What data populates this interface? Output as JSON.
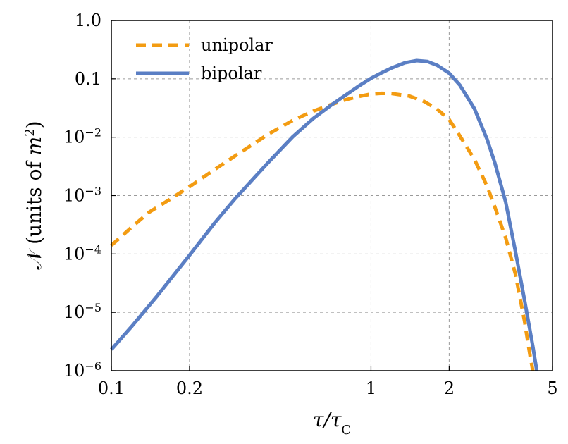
{
  "chart_data": {
    "type": "line",
    "title": "",
    "xlabel": "τ/τC",
    "xlabel_main": "τ/τ",
    "xlabel_sub": "C",
    "ylabel": "𝒩 (units of m²)",
    "ylabel_main": "𝒩 (units of ",
    "ylabel_var": "m",
    "ylabel_exp": "2",
    "ylabel_close": ")",
    "x_scale": "log",
    "y_scale": "log",
    "xlim": [
      0.1,
      5
    ],
    "ylim": [
      1e-06,
      1.0
    ],
    "grid": true,
    "legend_position": "top-left",
    "x_ticks": [
      {
        "value": 0.1,
        "label": "0.1"
      },
      {
        "value": 0.2,
        "label": "0.2"
      },
      {
        "value": 1,
        "label": "1"
      },
      {
        "value": 2,
        "label": "2"
      },
      {
        "value": 5,
        "label": "5"
      }
    ],
    "y_ticks": [
      {
        "value": 1.0,
        "base": "1.0",
        "exp": ""
      },
      {
        "value": 0.1,
        "base": "0.1",
        "exp": ""
      },
      {
        "value": 0.01,
        "base": "10",
        "exp": "−2"
      },
      {
        "value": 0.001,
        "base": "10",
        "exp": "−3"
      },
      {
        "value": 0.0001,
        "base": "10",
        "exp": "−4"
      },
      {
        "value": 1e-05,
        "base": "10",
        "exp": "−5"
      },
      {
        "value": 1e-06,
        "base": "10",
        "exp": "−6"
      }
    ],
    "x_grid": [
      0.2,
      1,
      2
    ],
    "y_grid": [
      0.1,
      0.01,
      0.001,
      0.0001,
      1e-05
    ],
    "series": [
      {
        "name": "unipolar",
        "style": "dashed",
        "color": "#f39c12",
        "points": [
          [
            0.1,
            0.00014
          ],
          [
            0.12,
            0.00029
          ],
          [
            0.14,
            0.00052
          ],
          [
            0.17,
            0.00089
          ],
          [
            0.2,
            0.00142
          ],
          [
            0.25,
            0.0028
          ],
          [
            0.3,
            0.0048
          ],
          [
            0.35,
            0.0075
          ],
          [
            0.4,
            0.0111
          ],
          [
            0.5,
            0.0194
          ],
          [
            0.6,
            0.028
          ],
          [
            0.7,
            0.036
          ],
          [
            0.8,
            0.044
          ],
          [
            0.9,
            0.05
          ],
          [
            1.0,
            0.055
          ],
          [
            1.1,
            0.0565
          ],
          [
            1.2,
            0.056
          ],
          [
            1.4,
            0.051
          ],
          [
            1.6,
            0.041
          ],
          [
            1.8,
            0.03
          ],
          [
            2.0,
            0.02
          ],
          [
            2.2,
            0.0105
          ],
          [
            2.5,
            0.0042
          ],
          [
            2.8,
            0.00145
          ],
          [
            3.0,
            0.00063
          ],
          [
            3.3,
            0.00019
          ],
          [
            3.6,
            4.5e-05
          ],
          [
            3.9,
            7.2e-06
          ],
          [
            4.1,
            1.8e-06
          ],
          [
            4.2,
            1e-06
          ]
        ]
      },
      {
        "name": "bipolar",
        "style": "solid",
        "color": "#5b7fc4",
        "points": [
          [
            0.1,
            2.3e-06
          ],
          [
            0.12,
            5.8e-06
          ],
          [
            0.15,
            1.9e-05
          ],
          [
            0.2,
            9.5e-05
          ],
          [
            0.25,
            0.00034
          ],
          [
            0.3,
            0.00089
          ],
          [
            0.4,
            0.0036
          ],
          [
            0.5,
            0.0102
          ],
          [
            0.6,
            0.021
          ],
          [
            0.7,
            0.035
          ],
          [
            0.8,
            0.053
          ],
          [
            0.9,
            0.076
          ],
          [
            1.0,
            0.102
          ],
          [
            1.1,
            0.127
          ],
          [
            1.2,
            0.153
          ],
          [
            1.35,
            0.188
          ],
          [
            1.5,
            0.205
          ],
          [
            1.65,
            0.198
          ],
          [
            1.8,
            0.17
          ],
          [
            2.0,
            0.125
          ],
          [
            2.2,
            0.078
          ],
          [
            2.5,
            0.031
          ],
          [
            2.8,
            0.0092
          ],
          [
            3.0,
            0.0036
          ],
          [
            3.3,
            0.00078
          ],
          [
            3.6,
            0.00011
          ],
          [
            3.9,
            1.65e-05
          ],
          [
            4.2,
            2.6e-06
          ],
          [
            4.35,
            1e-06
          ]
        ]
      }
    ]
  }
}
